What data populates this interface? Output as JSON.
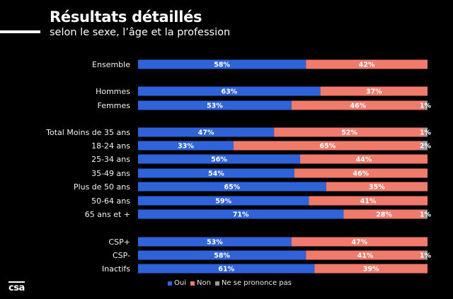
{
  "header": {
    "title": "Résultats détaillés",
    "subtitle": "selon le sexe, l’âge et la profession"
  },
  "logo": "csa",
  "colors": {
    "oui": "#2f63d9",
    "non": "#f07a6c",
    "nsp": "#9a9a9a"
  },
  "chart_data": {
    "type": "bar",
    "orientation": "horizontal",
    "stacked": true,
    "normalized": true,
    "title": "Résultats détaillés",
    "subtitle": "selon le sexe, l’âge et la profession",
    "xlabel": "",
    "ylabel": "",
    "xlim": [
      0,
      100
    ],
    "grid": false,
    "legend_position": "bottom",
    "categories": [
      "Ensemble",
      "Hommes",
      "Femmes",
      "Total Moins de 35 ans",
      "18-24 ans",
      "25-34 ans",
      "35-49 ans",
      "Plus de 50 ans",
      "50-64 ans",
      "65 ans et +",
      "CSP+",
      "CSP-",
      "Inactifs"
    ],
    "groups": [
      [
        "Ensemble"
      ],
      [
        "Hommes",
        "Femmes"
      ],
      [
        "Total Moins de 35 ans",
        "18-24 ans",
        "25-34 ans",
        "35-49 ans",
        "Plus de 50 ans",
        "50-64 ans",
        "65 ans et +"
      ],
      [
        "CSP+",
        "CSP-",
        "Inactifs"
      ]
    ],
    "series": [
      {
        "name": "Oui",
        "values": [
          58,
          63,
          53,
          47,
          33,
          56,
          54,
          65,
          59,
          71,
          53,
          58,
          61
        ]
      },
      {
        "name": "Non",
        "values": [
          42,
          37,
          46,
          52,
          65,
          44,
          46,
          35,
          41,
          28,
          47,
          41,
          39
        ]
      },
      {
        "name": "Ne se prononce pas",
        "values": [
          0,
          0,
          1,
          1,
          2,
          0,
          0,
          0,
          0,
          1,
          0,
          1,
          0
        ]
      }
    ],
    "value_suffix": "%"
  }
}
